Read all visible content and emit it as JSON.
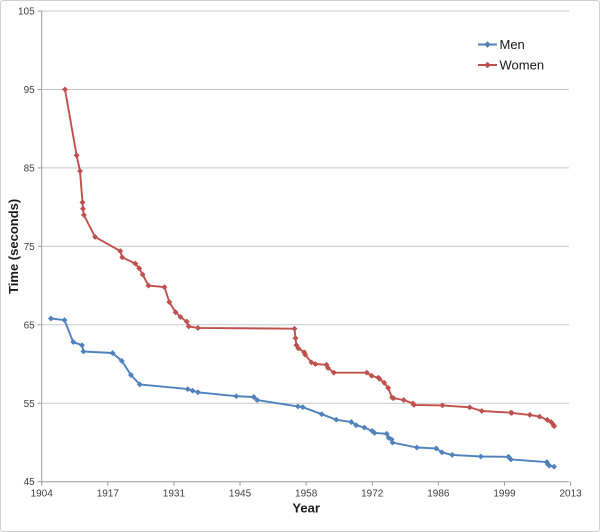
{
  "chart_data": {
    "type": "line",
    "title": "",
    "xlabel": "Year",
    "ylabel": "Time (seconds)",
    "xlim": [
      1904,
      2013
    ],
    "ylim": [
      45,
      105
    ],
    "grid": "horizontal",
    "y_ticks": [
      45,
      55,
      65,
      75,
      85,
      95,
      105
    ],
    "x_tick_labels": [
      "1904",
      "1917",
      "1931",
      "1945",
      "1958",
      "1972",
      "1986",
      "1999",
      "2013"
    ],
    "x_tick_step_years": 13.625,
    "legend_position": "top-right",
    "marker": "diamond",
    "series": [
      {
        "name": "Men",
        "color": "#4F81BD",
        "points": [
          [
            1905.9,
            65.8
          ],
          [
            1908.7,
            65.6
          ],
          [
            1910.5,
            62.8
          ],
          [
            1912.3,
            62.4
          ],
          [
            1912.6,
            61.6
          ],
          [
            1918.6,
            61.4
          ],
          [
            1920.5,
            60.4
          ],
          [
            1922.4,
            58.6
          ],
          [
            1924.2,
            57.4
          ],
          [
            1934.1,
            56.8
          ],
          [
            1935.1,
            56.6
          ],
          [
            1936.2,
            56.4
          ],
          [
            1944.1,
            55.9
          ],
          [
            1947.7,
            55.8
          ],
          [
            1948.4,
            55.4
          ],
          [
            1956.8,
            54.6
          ],
          [
            1957.8,
            54.5
          ],
          [
            1961.7,
            53.6
          ],
          [
            1964.7,
            52.9
          ],
          [
            1967.8,
            52.6
          ],
          [
            1968.8,
            52.2
          ],
          [
            1970.5,
            51.9
          ],
          [
            1972.1,
            51.47
          ],
          [
            1972.6,
            51.22
          ],
          [
            1975.1,
            51.11
          ],
          [
            1975.5,
            50.59
          ],
          [
            1976.1,
            50.39
          ],
          [
            1976.3,
            49.99
          ],
          [
            1981.3,
            49.36
          ],
          [
            1985.3,
            49.24
          ],
          [
            1986.5,
            48.74
          ],
          [
            1988.6,
            48.42
          ],
          [
            1994.5,
            48.21
          ],
          [
            2000.2,
            48.18
          ],
          [
            2000.7,
            47.84
          ],
          [
            2008.1,
            47.5
          ],
          [
            2008.3,
            47.24
          ],
          [
            2008.6,
            47.05
          ],
          [
            2009.6,
            46.91
          ]
        ]
      },
      {
        "name": "Women",
        "color": "#C0504D",
        "points": [
          [
            1908.8,
            95.0
          ],
          [
            1911.2,
            86.6
          ],
          [
            1911.9,
            84.6
          ],
          [
            1912.4,
            80.6
          ],
          [
            1912.5,
            79.8
          ],
          [
            1912.7,
            79.0
          ],
          [
            1915.0,
            76.2
          ],
          [
            1920.2,
            74.4
          ],
          [
            1920.6,
            73.6
          ],
          [
            1923.3,
            72.8
          ],
          [
            1924.1,
            72.2
          ],
          [
            1924.8,
            71.4
          ],
          [
            1926.0,
            70.0
          ],
          [
            1929.3,
            69.8
          ],
          [
            1930.3,
            67.9
          ],
          [
            1931.6,
            66.6
          ],
          [
            1932.6,
            66.0
          ],
          [
            1933.9,
            65.4
          ],
          [
            1934.3,
            64.8
          ],
          [
            1936.2,
            64.6
          ],
          [
            1956.1,
            64.5
          ],
          [
            1956.3,
            63.3
          ],
          [
            1956.5,
            62.4
          ],
          [
            1956.9,
            62.0
          ],
          [
            1958.1,
            61.5
          ],
          [
            1958.3,
            61.2
          ],
          [
            1959.6,
            60.2
          ],
          [
            1960.4,
            60.0
          ],
          [
            1962.7,
            59.9
          ],
          [
            1963.0,
            59.5
          ],
          [
            1964.2,
            58.9
          ],
          [
            1971.0,
            58.9
          ],
          [
            1972.0,
            58.5
          ],
          [
            1973.4,
            58.25
          ],
          [
            1973.6,
            58.12
          ],
          [
            1974.6,
            57.61
          ],
          [
            1975.4,
            56.96
          ],
          [
            1976.2,
            55.73
          ],
          [
            1976.5,
            55.65
          ],
          [
            1978.6,
            55.41
          ],
          [
            1980.5,
            54.98
          ],
          [
            1980.7,
            54.79
          ],
          [
            1986.6,
            54.73
          ],
          [
            1992.2,
            54.48
          ],
          [
            1994.7,
            54.01
          ],
          [
            2000.7,
            53.8
          ],
          [
            2000.9,
            53.77
          ],
          [
            2004.6,
            53.52
          ],
          [
            2006.6,
            53.3
          ],
          [
            2008.2,
            52.88
          ],
          [
            2009.0,
            52.6
          ],
          [
            2009.5,
            52.22
          ],
          [
            2009.6,
            52.07
          ]
        ]
      }
    ]
  },
  "colors": {
    "background": "#ffffff",
    "frame_border": "#d0d0d0",
    "gridline": "#c9c9c9",
    "axis": "#9b9b9b",
    "tick_text": "#3f3f3f",
    "title_text": "#1a1a1a",
    "men_line": "#4F81BD",
    "women_line": "#C0504D"
  }
}
